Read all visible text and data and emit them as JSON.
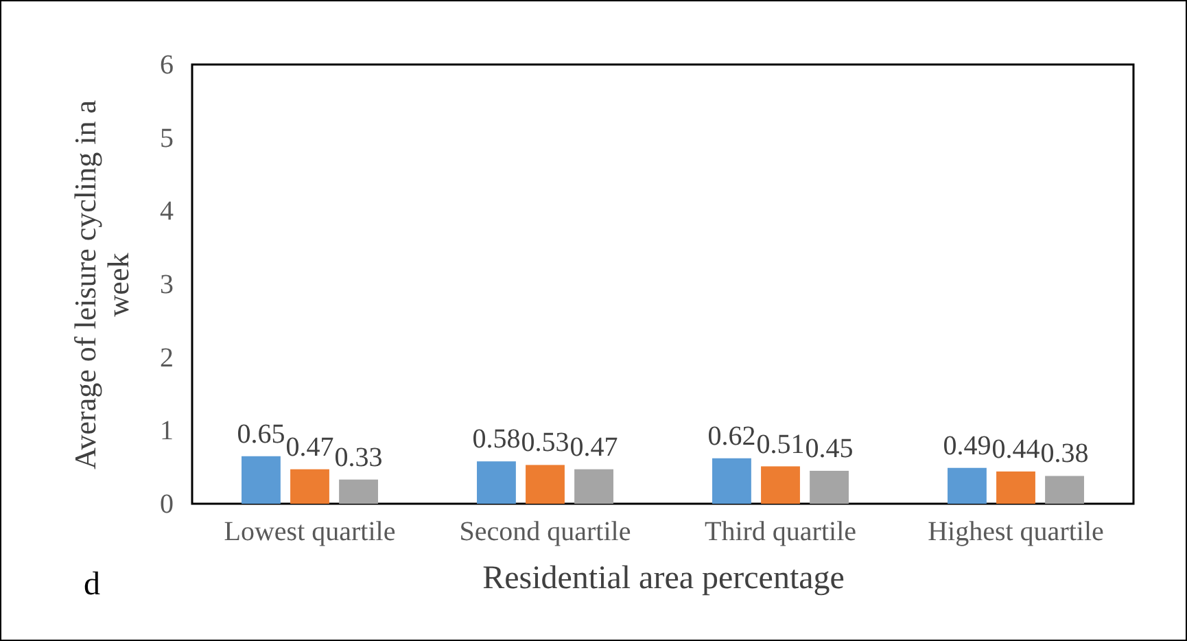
{
  "chart_data": {
    "type": "bar",
    "xlabel": "Residential area percentage",
    "ylabel": "Average of leisure cycling in a week",
    "categories": [
      "Lowest quartile",
      "Second quartile",
      "Third quartile",
      "Highest quartile"
    ],
    "series": [
      {
        "color": "#5b9bd5",
        "values": [
          0.65,
          0.58,
          0.62,
          0.49
        ]
      },
      {
        "color": "#ed7d31",
        "values": [
          0.47,
          0.53,
          0.51,
          0.44
        ]
      },
      {
        "color": "#a5a5a5",
        "values": [
          0.33,
          0.47,
          0.45,
          0.38
        ]
      }
    ],
    "ylim": [
      0,
      6
    ],
    "yticks": [
      0,
      1,
      2,
      3,
      4,
      5,
      6
    ],
    "data_labels": true,
    "annotations": [
      "d"
    ]
  }
}
